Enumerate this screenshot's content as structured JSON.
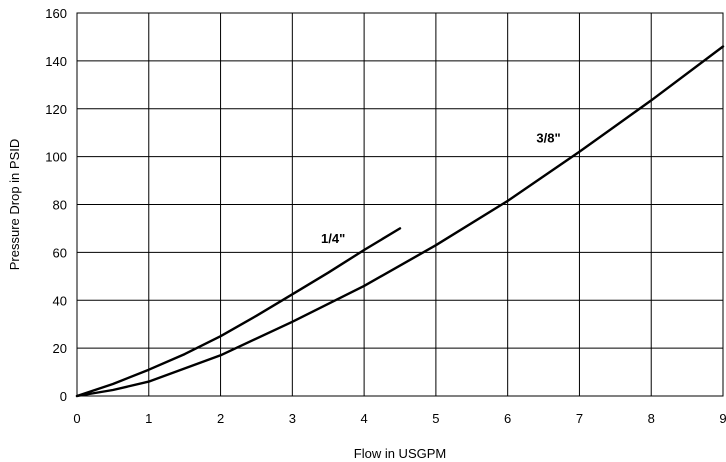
{
  "chart_data": {
    "type": "line",
    "title": "",
    "xlabel": "Flow in USGPM",
    "ylabel": "Pressure Drop in PSID",
    "xlim": [
      0,
      9
    ],
    "ylim": [
      0,
      160
    ],
    "x_ticks": [
      "0",
      "1",
      "2",
      "3",
      "4",
      "5",
      "6",
      "7",
      "8",
      "9"
    ],
    "y_ticks": [
      "0",
      "20",
      "40",
      "60",
      "80",
      "100",
      "120",
      "140",
      "160"
    ],
    "grid": true,
    "legend": "none",
    "series": [
      {
        "name": "1/4\"",
        "x": [
          0,
          0.5,
          1,
          1.5,
          2,
          2.5,
          3,
          3.5,
          4,
          4.5
        ],
        "y": [
          0,
          5,
          11,
          17.5,
          25,
          33.5,
          42.5,
          51.5,
          61,
          70
        ]
      },
      {
        "name": "3/8\"",
        "x": [
          0,
          0.5,
          1,
          2,
          3,
          4,
          5,
          6,
          7,
          8,
          9
        ],
        "y": [
          0,
          2.5,
          6,
          17,
          31,
          46,
          63,
          81.5,
          102,
          123.5,
          146
        ]
      }
    ],
    "series_label_pos": [
      {
        "x": 3.4,
        "y": 64
      },
      {
        "x": 6.4,
        "y": 106
      }
    ]
  }
}
